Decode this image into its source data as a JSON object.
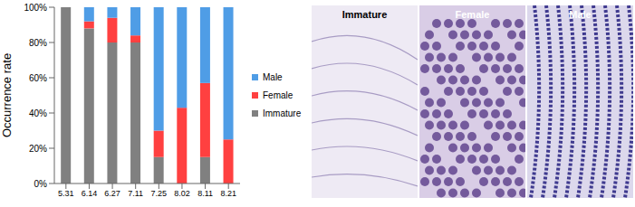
{
  "chart_data": {
    "type": "bar",
    "stacked": true,
    "categories": [
      "5.31",
      "6.14",
      "6.27",
      "7.11",
      "7.25",
      "8.02",
      "8.11",
      "8.21"
    ],
    "y_label": "Occurrence rate",
    "ylim": [
      0,
      100
    ],
    "yticks": [
      {
        "value": 0,
        "label": "0%"
      },
      {
        "value": 20,
        "label": "20%"
      },
      {
        "value": 40,
        "label": "40%"
      },
      {
        "value": 60,
        "label": "60%"
      },
      {
        "value": 80,
        "label": "80%"
      },
      {
        "value": 100,
        "label": "100%"
      }
    ],
    "grid": false,
    "legend": "right",
    "series": [
      {
        "name": "Immature",
        "color": "#808080",
        "values": [
          100,
          88,
          80,
          80,
          15,
          0,
          15,
          0
        ]
      },
      {
        "name": "Female",
        "color": "#ff4040",
        "values": [
          0,
          4,
          14,
          4,
          15,
          43,
          42,
          25
        ]
      },
      {
        "name": "Male",
        "color": "#4f9de6",
        "values": [
          0,
          8,
          6,
          16,
          70,
          57,
          43,
          75
        ]
      }
    ]
  },
  "micrographs": {
    "labels": [
      "Immature",
      "Female",
      "Male"
    ]
  }
}
